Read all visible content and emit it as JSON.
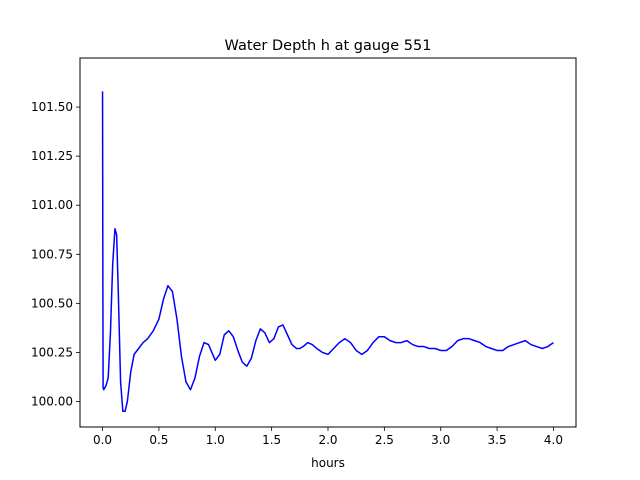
{
  "chart_data": {
    "type": "line",
    "title": "Water Depth h at gauge 551",
    "xlabel": "hours",
    "ylabel": "",
    "xlim": [
      -0.2,
      4.2
    ],
    "ylim": [
      99.87,
      101.75
    ],
    "grid": false,
    "x_ticks": [
      0.0,
      0.5,
      1.0,
      1.5,
      2.0,
      2.5,
      3.0,
      3.5,
      4.0
    ],
    "x_tick_labels": [
      "0.0",
      "0.5",
      "1.0",
      "1.5",
      "2.0",
      "2.5",
      "3.0",
      "3.5",
      "4.0"
    ],
    "y_ticks": [
      100.0,
      100.25,
      100.5,
      100.75,
      101.0,
      101.25,
      101.5
    ],
    "y_tick_labels": [
      "100.00",
      "100.25",
      "100.50",
      "100.75",
      "101.00",
      "101.25",
      "101.50"
    ],
    "series": [
      {
        "name": "",
        "color": "#0000ff",
        "x": [
          0.0,
          0.003,
          0.005,
          0.01,
          0.02,
          0.03,
          0.05,
          0.07,
          0.09,
          0.11,
          0.125,
          0.14,
          0.16,
          0.18,
          0.2,
          0.22,
          0.25,
          0.28,
          0.32,
          0.36,
          0.4,
          0.45,
          0.5,
          0.54,
          0.58,
          0.62,
          0.66,
          0.7,
          0.74,
          0.78,
          0.82,
          0.86,
          0.9,
          0.94,
          0.97,
          1.0,
          1.04,
          1.08,
          1.12,
          1.16,
          1.2,
          1.24,
          1.28,
          1.32,
          1.36,
          1.4,
          1.44,
          1.48,
          1.52,
          1.56,
          1.6,
          1.64,
          1.68,
          1.72,
          1.75,
          1.78,
          1.82,
          1.86,
          1.9,
          1.95,
          2.0,
          2.05,
          2.1,
          2.15,
          2.2,
          2.25,
          2.3,
          2.35,
          2.4,
          2.45,
          2.5,
          2.55,
          2.6,
          2.65,
          2.7,
          2.75,
          2.8,
          2.85,
          2.9,
          2.95,
          3.0,
          3.05,
          3.1,
          3.15,
          3.2,
          3.25,
          3.3,
          3.35,
          3.4,
          3.45,
          3.5,
          3.55,
          3.6,
          3.65,
          3.7,
          3.75,
          3.8,
          3.85,
          3.9,
          3.95,
          4.0
        ],
        "y": [
          101.58,
          100.6,
          100.07,
          100.06,
          100.07,
          100.08,
          100.12,
          100.35,
          100.7,
          100.88,
          100.85,
          100.55,
          100.1,
          99.95,
          99.95,
          100.0,
          100.15,
          100.24,
          100.27,
          100.3,
          100.32,
          100.36,
          100.42,
          100.52,
          100.59,
          100.56,
          100.42,
          100.23,
          100.1,
          100.06,
          100.12,
          100.23,
          100.3,
          100.29,
          100.25,
          100.21,
          100.24,
          100.34,
          100.36,
          100.33,
          100.26,
          100.2,
          100.18,
          100.22,
          100.31,
          100.37,
          100.35,
          100.3,
          100.32,
          100.38,
          100.39,
          100.34,
          100.29,
          100.27,
          100.27,
          100.28,
          100.3,
          100.29,
          100.27,
          100.25,
          100.24,
          100.27,
          100.3,
          100.32,
          100.3,
          100.26,
          100.24,
          100.26,
          100.3,
          100.33,
          100.33,
          100.31,
          100.3,
          100.3,
          100.31,
          100.29,
          100.28,
          100.28,
          100.27,
          100.27,
          100.26,
          100.26,
          100.28,
          100.31,
          100.32,
          100.32,
          100.31,
          100.3,
          100.28,
          100.27,
          100.26,
          100.26,
          100.28,
          100.29,
          100.3,
          100.31,
          100.29,
          100.28,
          100.27,
          100.28,
          100.3
        ]
      }
    ]
  }
}
